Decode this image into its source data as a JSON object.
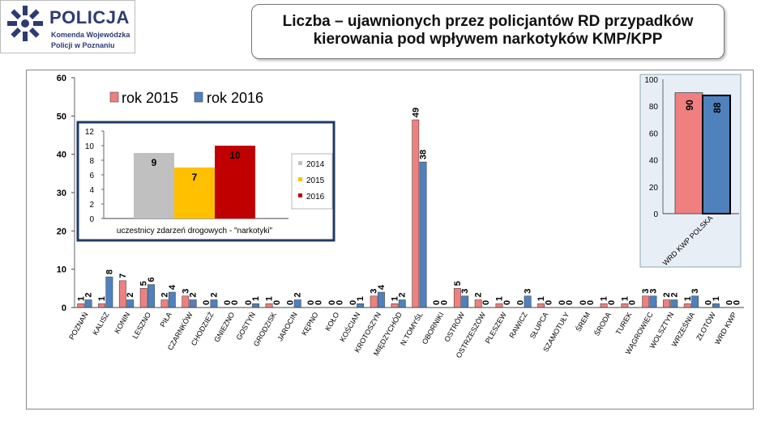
{
  "logo": {
    "line1": "POLICJA",
    "line2": "Komenda Wojewódzka",
    "line3": "Policji w Poznaniu"
  },
  "title": {
    "line1": "Liczba – ujawnionych przez policjantów RD przypadków",
    "line2": "kierowania pod wpływem narkotyków  KMP/KPP"
  },
  "colors": {
    "s2015": "#f08080",
    "s2016": "#4f81bd",
    "i2014": "#c0c0c0",
    "i2015": "#ffc000",
    "i2016": "#c00000",
    "frame": "#1f3b63"
  },
  "chart_data": [
    {
      "type": "bar",
      "title": "",
      "legend": [
        "rok 2015",
        "rok 2016"
      ],
      "ylim": [
        0,
        60
      ],
      "yticks": [
        0,
        10,
        20,
        30,
        40,
        50,
        60
      ],
      "categories": [
        "POZNAŃ",
        "KALISZ",
        "KONIN",
        "LESZNO",
        "PIŁA",
        "CZARNKÓW",
        "CHODZIEŻ",
        "GNIEZNO",
        "GOSTYŃ",
        "GRODZISK",
        "JAROCIN",
        "KĘPNO",
        "KOŁO",
        "KOŚCIAN",
        "KROTOSZYN",
        "MIĘDZYCHÓD",
        "N.TOMYŚL",
        "OBORNIKI",
        "OSTRÓW",
        "OSTRZESZÓW",
        "PLESZEW",
        "RAWICZ",
        "SŁUPCA",
        "SZAMOTUŁY",
        "ŚREM",
        "ŚRODA",
        "TUREK",
        "WĄGROWIEC",
        "WOLSZTYN",
        "WRZEŚNIA",
        "ZŁOTÓW",
        "WRD KWP"
      ],
      "series": [
        {
          "name": "rok 2015",
          "values": [
            1,
            1,
            7,
            5,
            2,
            3,
            0,
            0,
            0,
            1,
            0,
            0,
            0,
            0,
            3,
            1,
            49,
            0,
            5,
            2,
            1,
            0,
            1,
            0,
            0,
            1,
            1,
            3,
            2,
            1,
            0,
            0
          ]
        },
        {
          "name": "rok 2016",
          "values": [
            2,
            8,
            2,
            6,
            4,
            2,
            2,
            0,
            1,
            0,
            2,
            0,
            0,
            1,
            4,
            2,
            38,
            0,
            3,
            0,
            0,
            3,
            0,
            0,
            0,
            0,
            0,
            3,
            2,
            3,
            1,
            0
          ]
        }
      ]
    },
    {
      "type": "bar",
      "title": "WRD KWP POLSKA",
      "category_label": "WRD KWP POLSKA",
      "ylim": [
        0,
        100
      ],
      "yticks": [
        0,
        20,
        40,
        60,
        80,
        100
      ],
      "series": [
        {
          "name": "rok 2015",
          "values": [
            90
          ]
        },
        {
          "name": "rok 2016",
          "values": [
            88
          ]
        }
      ]
    },
    {
      "type": "bar",
      "title": "",
      "xlabel": "uczestnicy zdarzeń drogowych - \"narkotyki\"",
      "ylim": [
        0,
        12
      ],
      "yticks": [
        0,
        2,
        4,
        6,
        8,
        10,
        12
      ],
      "legend": [
        "2014",
        "2015",
        "2016"
      ],
      "series": [
        {
          "name": "2014",
          "values": [
            9
          ]
        },
        {
          "name": "2015",
          "values": [
            7
          ]
        },
        {
          "name": "2016",
          "values": [
            10
          ]
        }
      ]
    }
  ]
}
